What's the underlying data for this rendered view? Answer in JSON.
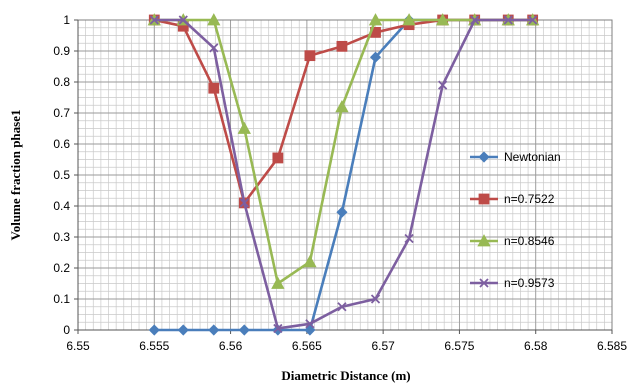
{
  "chart_data": {
    "type": "line",
    "title": "",
    "xlabel": "Diametric Distance  (m)",
    "ylabel": "Volume fraction phase1",
    "xlim": [
      6.55,
      6.585
    ],
    "ylim": [
      0,
      1
    ],
    "xticks": [
      "6.55",
      "6.555",
      "6.56",
      "6.565",
      "6.57",
      "6.575",
      "6.58",
      "6.585"
    ],
    "xtick_values": [
      6.55,
      6.555,
      6.56,
      6.565,
      6.57,
      6.575,
      6.58,
      6.585
    ],
    "yticks": [
      "0",
      "0.1",
      "0.2",
      "0.3",
      "0.4",
      "0.5",
      "0.6",
      "0.7",
      "0.8",
      "0.9",
      "1"
    ],
    "ytick_values": [
      0,
      0.1,
      0.2,
      0.3,
      0.4,
      0.5,
      0.6,
      0.7,
      0.8,
      0.9,
      1
    ],
    "grid": true,
    "legend_position": "right",
    "series": [
      {
        "name": "Newtonian",
        "color": "#4a7ebb",
        "marker": "diamond",
        "x": [
          6.555,
          6.5569,
          6.5589,
          6.5609,
          6.5631,
          6.5652,
          6.5673,
          6.5695,
          6.5717,
          6.5739,
          6.576,
          6.5782,
          6.5798
        ],
        "y": [
          0,
          0,
          0,
          0,
          0,
          0,
          0.38,
          0.88,
          1,
          1,
          1,
          1,
          1
        ]
      },
      {
        "name": "n=0.7522",
        "color": "#be4b48",
        "marker": "square",
        "x": [
          6.555,
          6.5569,
          6.5589,
          6.5609,
          6.5631,
          6.5652,
          6.5673,
          6.5695,
          6.5717,
          6.5739,
          6.576,
          6.5782,
          6.5798
        ],
        "y": [
          1,
          0.98,
          0.78,
          0.41,
          0.555,
          0.885,
          0.915,
          0.96,
          0.985,
          1,
          1,
          1,
          1
        ]
      },
      {
        "name": "n=0.8546",
        "color": "#98b954",
        "marker": "triangle",
        "x": [
          6.555,
          6.5569,
          6.5589,
          6.5609,
          6.5631,
          6.5652,
          6.5673,
          6.5695,
          6.5717,
          6.5739,
          6.576,
          6.5782,
          6.5798
        ],
        "y": [
          1,
          1,
          1,
          0.65,
          0.15,
          0.22,
          0.72,
          1,
          1,
          1,
          1,
          1,
          1
        ]
      },
      {
        "name": "n=0.9573",
        "color": "#7d5fa0",
        "marker": "x",
        "x": [
          6.555,
          6.5569,
          6.5589,
          6.5609,
          6.5631,
          6.5652,
          6.5673,
          6.5695,
          6.5717,
          6.5739,
          6.576,
          6.5782,
          6.5798
        ],
        "y": [
          1,
          1,
          0.91,
          0.41,
          0.005,
          0.02,
          0.075,
          0.1,
          0.295,
          0.79,
          1,
          1,
          1
        ]
      }
    ]
  }
}
